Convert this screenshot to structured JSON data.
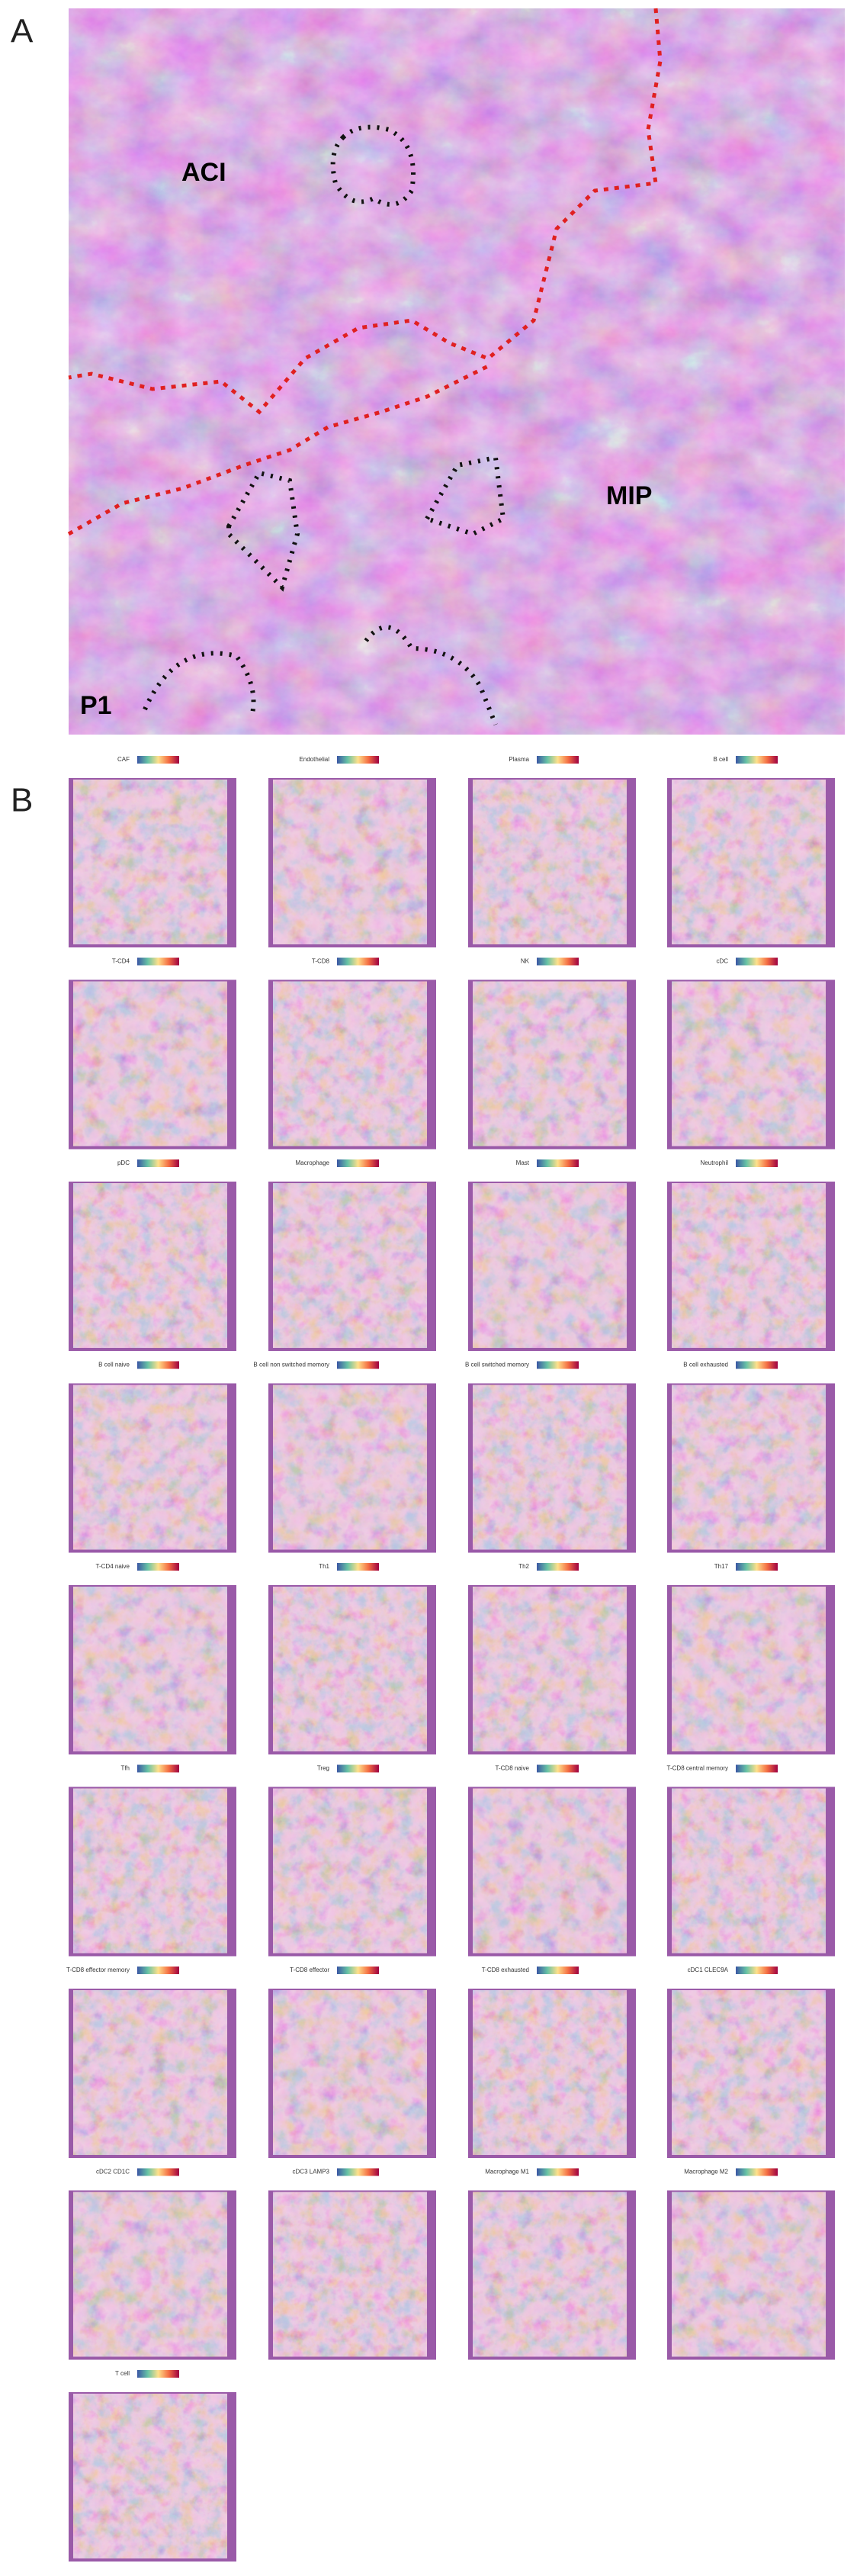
{
  "panel_labels": [
    "A",
    "B"
  ],
  "histology": {
    "regions": [
      "ACI",
      "MIP",
      "P1"
    ]
  },
  "maps": [
    {
      "title": "CAF"
    },
    {
      "title": "Endothelial"
    },
    {
      "title": "Plasma"
    },
    {
      "title": "B cell"
    },
    {
      "title": "T-CD4"
    },
    {
      "title": "T-CD8"
    },
    {
      "title": "NK"
    },
    {
      "title": "cDC"
    },
    {
      "title": "pDC"
    },
    {
      "title": "Macrophage"
    },
    {
      "title": "Mast"
    },
    {
      "title": "Neutrophil"
    },
    {
      "title": "B cell naive"
    },
    {
      "title": "B cell non switched memory"
    },
    {
      "title": "B cell switched memory"
    },
    {
      "title": "B cell exhausted"
    },
    {
      "title": "T-CD4 naive"
    },
    {
      "title": "Th1"
    },
    {
      "title": "Th2"
    },
    {
      "title": "Th17"
    },
    {
      "title": "Tfh"
    },
    {
      "title": "Treg"
    },
    {
      "title": "T-CD8 naive"
    },
    {
      "title": "T-CD8 central memory"
    },
    {
      "title": "T-CD8 effector memory"
    },
    {
      "title": "T-CD8 effector"
    },
    {
      "title": "T-CD8 exhausted"
    },
    {
      "title": "cDC1 CLEC9A"
    },
    {
      "title": "cDC2 CD1C"
    },
    {
      "title": "cDC3 LAMP3"
    },
    {
      "title": "Macrophage M1"
    },
    {
      "title": "Macrophage M2"
    },
    {
      "title": "T cell"
    }
  ]
}
